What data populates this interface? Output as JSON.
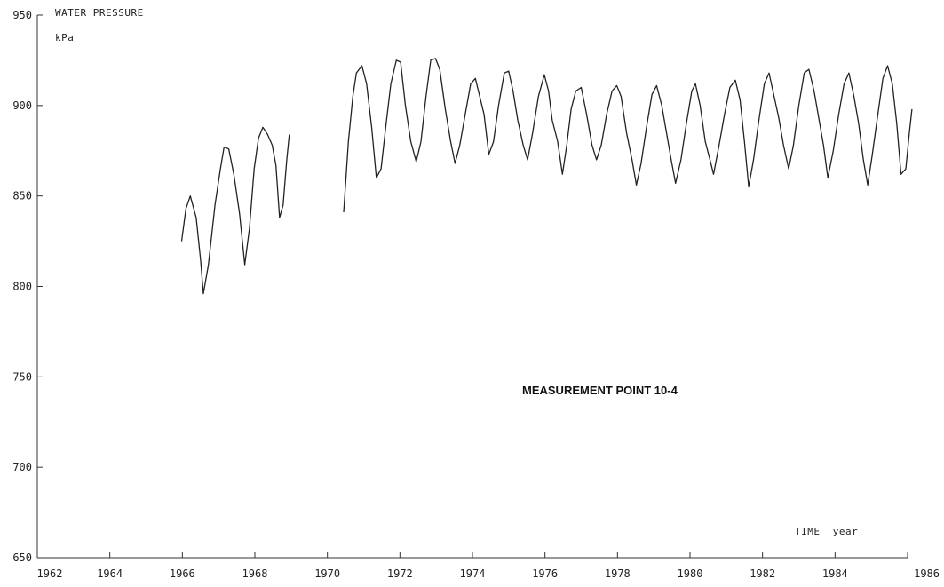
{
  "chart_data": {
    "type": "line",
    "ylabel": "WATER PRESSURE",
    "yunit": "kPa",
    "xlabel": "TIME  year",
    "annotation": "MEASUREMENT POINT 10-4",
    "xlim": [
      1962,
      1986
    ],
    "ylim": [
      650,
      950
    ],
    "x_ticks": [
      "1962",
      "1964",
      "1966",
      "1968",
      "1970",
      "1972",
      "1974",
      "1976",
      "1978",
      "1980",
      "1982",
      "1984",
      "1986"
    ],
    "y_ticks": [
      "650",
      "700",
      "750",
      "800",
      "850",
      "900",
      "950"
    ],
    "grid": false,
    "line_color": "#222222",
    "series": [
      {
        "values": [
          [
            1965.98,
            825
          ],
          [
            1966.1,
            843
          ],
          [
            1966.22,
            850
          ],
          [
            1966.38,
            838
          ],
          [
            1966.5,
            815
          ],
          [
            1966.58,
            796
          ],
          [
            1966.72,
            812
          ],
          [
            1966.9,
            845
          ],
          [
            1967.05,
            865
          ],
          [
            1967.15,
            877
          ],
          [
            1967.28,
            876
          ],
          [
            1967.42,
            862
          ],
          [
            1967.58,
            840
          ],
          [
            1967.72,
            812
          ],
          [
            1967.85,
            832
          ],
          [
            1967.98,
            865
          ],
          [
            1968.1,
            882
          ],
          [
            1968.22,
            888
          ],
          [
            1968.35,
            884
          ],
          [
            1968.48,
            878
          ],
          [
            1968.58,
            867
          ],
          [
            1968.68,
            838
          ],
          [
            1968.78,
            845
          ],
          [
            1968.88,
            870
          ],
          [
            1968.95,
            884
          ]
        ]
      },
      {
        "values": [
          [
            1970.45,
            841
          ],
          [
            1970.58,
            880
          ],
          [
            1970.7,
            905
          ],
          [
            1970.8,
            918
          ],
          [
            1970.95,
            922
          ],
          [
            1971.08,
            912
          ],
          [
            1971.22,
            888
          ],
          [
            1971.35,
            860
          ],
          [
            1971.48,
            865
          ],
          [
            1971.62,
            890
          ],
          [
            1971.75,
            912
          ],
          [
            1971.9,
            925
          ],
          [
            1972.02,
            924
          ],
          [
            1972.15,
            900
          ],
          [
            1972.3,
            880
          ],
          [
            1972.45,
            869
          ],
          [
            1972.58,
            880
          ],
          [
            1972.72,
            905
          ],
          [
            1972.85,
            925
          ],
          [
            1972.98,
            926
          ],
          [
            1973.1,
            920
          ],
          [
            1973.25,
            898
          ],
          [
            1973.4,
            880
          ],
          [
            1973.52,
            868
          ],
          [
            1973.65,
            878
          ],
          [
            1973.8,
            895
          ],
          [
            1973.95,
            912
          ],
          [
            1974.08,
            915
          ],
          [
            1974.2,
            905
          ],
          [
            1974.32,
            895
          ],
          [
            1974.45,
            873
          ],
          [
            1974.58,
            880
          ],
          [
            1974.72,
            900
          ],
          [
            1974.88,
            918
          ],
          [
            1975.0,
            919
          ],
          [
            1975.12,
            908
          ],
          [
            1975.25,
            892
          ],
          [
            1975.4,
            878
          ],
          [
            1975.52,
            870
          ],
          [
            1975.66,
            885
          ],
          [
            1975.82,
            905
          ],
          [
            1975.98,
            917
          ],
          [
            1976.1,
            908
          ],
          [
            1976.2,
            892
          ],
          [
            1976.35,
            880
          ],
          [
            1976.48,
            862
          ],
          [
            1976.6,
            878
          ],
          [
            1976.72,
            898
          ],
          [
            1976.85,
            908
          ],
          [
            1977.0,
            910
          ],
          [
            1977.15,
            895
          ],
          [
            1977.3,
            878
          ],
          [
            1977.42,
            870
          ],
          [
            1977.55,
            878
          ],
          [
            1977.7,
            895
          ],
          [
            1977.85,
            908
          ],
          [
            1977.98,
            911
          ],
          [
            1978.1,
            905
          ],
          [
            1978.25,
            885
          ],
          [
            1978.4,
            870
          ],
          [
            1978.52,
            856
          ],
          [
            1978.65,
            868
          ],
          [
            1978.8,
            888
          ],
          [
            1978.95,
            906
          ],
          [
            1979.08,
            911
          ],
          [
            1979.22,
            900
          ],
          [
            1979.35,
            885
          ],
          [
            1979.48,
            870
          ],
          [
            1979.6,
            857
          ],
          [
            1979.75,
            870
          ],
          [
            1979.9,
            890
          ],
          [
            1980.05,
            908
          ],
          [
            1980.15,
            912
          ],
          [
            1980.28,
            900
          ],
          [
            1980.42,
            880
          ],
          [
            1980.55,
            870
          ],
          [
            1980.65,
            862
          ],
          [
            1980.8,
            878
          ],
          [
            1980.95,
            895
          ],
          [
            1981.1,
            910
          ],
          [
            1981.25,
            914
          ],
          [
            1981.38,
            903
          ],
          [
            1981.5,
            880
          ],
          [
            1981.62,
            855
          ],
          [
            1981.75,
            870
          ],
          [
            1981.9,
            892
          ],
          [
            1982.05,
            912
          ],
          [
            1982.18,
            918
          ],
          [
            1982.32,
            905
          ],
          [
            1982.45,
            893
          ],
          [
            1982.58,
            878
          ],
          [
            1982.72,
            865
          ],
          [
            1982.85,
            878
          ],
          [
            1983.0,
            900
          ],
          [
            1983.15,
            918
          ],
          [
            1983.28,
            920
          ],
          [
            1983.42,
            908
          ],
          [
            1983.55,
            893
          ],
          [
            1983.68,
            878
          ],
          [
            1983.8,
            860
          ],
          [
            1983.95,
            875
          ],
          [
            1984.1,
            895
          ],
          [
            1984.25,
            912
          ],
          [
            1984.38,
            918
          ],
          [
            1984.52,
            905
          ],
          [
            1984.65,
            890
          ],
          [
            1984.78,
            870
          ],
          [
            1984.9,
            856
          ],
          [
            1985.02,
            872
          ],
          [
            1985.18,
            895
          ],
          [
            1985.32,
            915
          ],
          [
            1985.45,
            922
          ],
          [
            1985.58,
            912
          ],
          [
            1985.7,
            890
          ],
          [
            1985.82,
            862
          ],
          [
            1985.95,
            865
          ],
          [
            1986.05,
            885
          ],
          [
            1986.12,
            898
          ]
        ]
      }
    ]
  }
}
